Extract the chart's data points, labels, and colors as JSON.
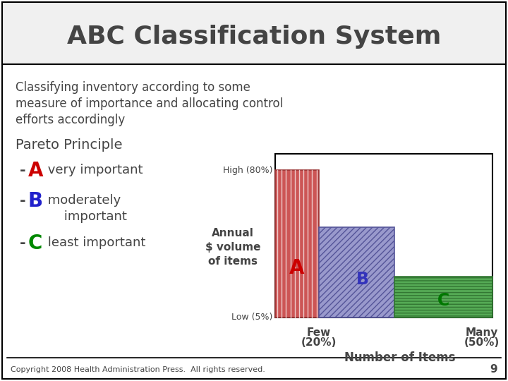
{
  "title": "ABC Classification System",
  "subtitle_line1": "Classifying inventory according to some",
  "subtitle_line2": "measure of importance and allocating control",
  "subtitle_line3": "efforts accordingly",
  "pareto_title": "Pareto Principle",
  "A_dash": "-",
  "A_letter": "A",
  "A_color": "#cc0000",
  "A_desc": " very important",
  "B_dash": "-",
  "B_letter": "B",
  "B_color": "#2222cc",
  "B_desc": " moderately",
  "B_desc2": "     important",
  "C_dash": "-",
  "C_letter": "C",
  "C_color": "#008800",
  "C_desc": " least important",
  "bar_A_face": "#cc5555",
  "bar_A_edge": "#993333",
  "bar_B_face": "#9999cc",
  "bar_B_edge": "#555599",
  "bar_C_face": "#55aa55",
  "bar_C_edge": "#337733",
  "bar_A_label": "A",
  "bar_B_label": "B",
  "bar_C_label": "C",
  "bar_A_label_color": "#cc0000",
  "bar_B_label_color": "#3333bb",
  "bar_C_label_color": "#007700",
  "y_high_label": "High (80%)",
  "y_low_label": "Low (5%)",
  "x_few_label1": "Few",
  "x_few_label2": "(20%)",
  "x_many_label1": "Many",
  "x_many_label2": "(50%)",
  "x_axis_label": "Number of Items",
  "y_axis_label1": "Annual",
  "y_axis_label2": "$ volume",
  "y_axis_label3": "of items",
  "copyright": "Copyright 2008 Health Administration Press.  All rights reserved.",
  "page_num": "9",
  "bg_color": "#ffffff",
  "title_bg": "#f0f0f0",
  "border_color": "#000000",
  "text_color": "#444444"
}
